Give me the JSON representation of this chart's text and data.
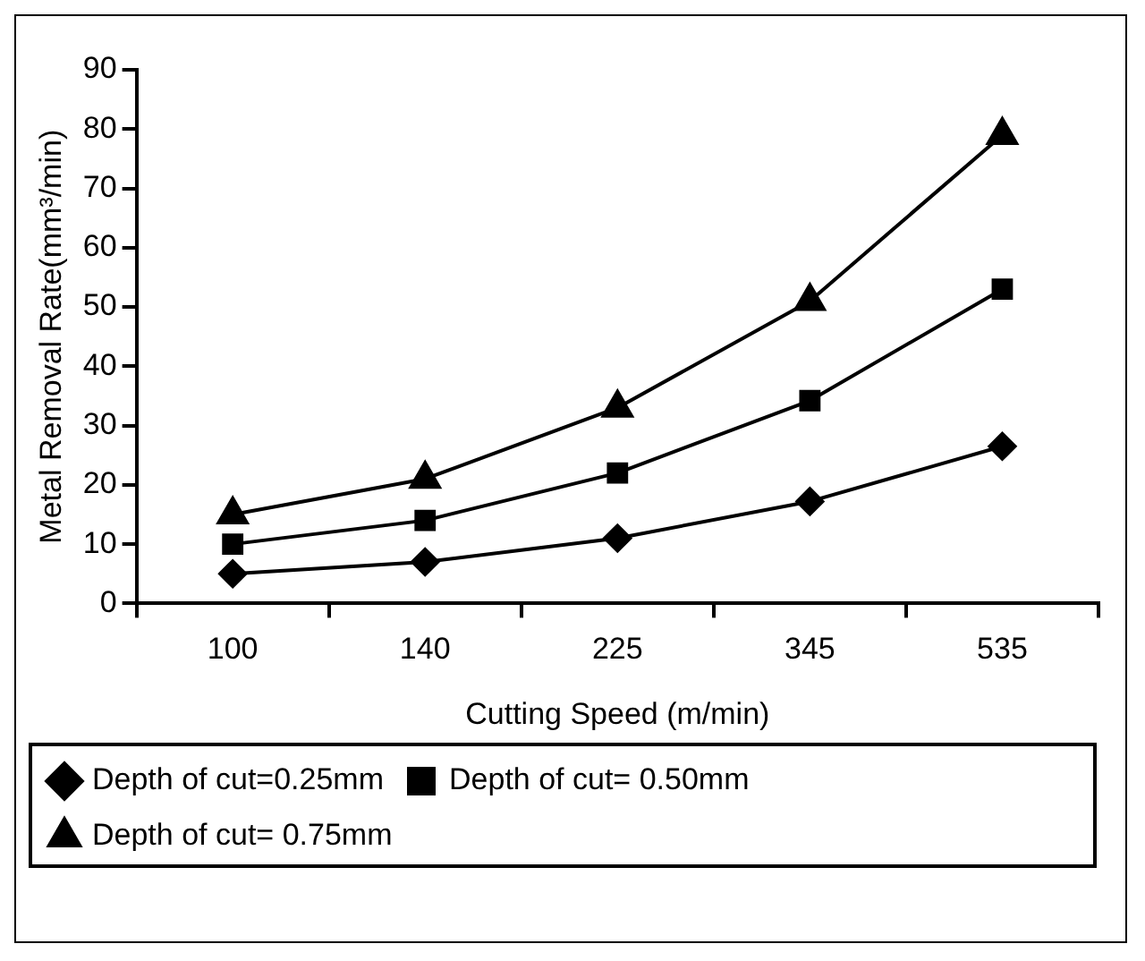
{
  "chart_data": {
    "type": "line",
    "xlabel": "Cutting Speed (m/min)",
    "ylabel": "Metal Removal Rate(mm³/min)",
    "categories": [
      "100",
      "140",
      "225",
      "345",
      "535"
    ],
    "series": [
      {
        "name": "Depth of cut=0.25mm",
        "color": "#000000",
        "marker": "diamond",
        "values": [
          5,
          7,
          11,
          17.2,
          26.5
        ]
      },
      {
        "name": "Depth of cut= 0.50mm",
        "color": "#000000",
        "marker": "square",
        "values": [
          10,
          14,
          22,
          34.2,
          53
        ]
      },
      {
        "name": "Depth of cut= 0.75mm",
        "color": "#000000",
        "marker": "triangle",
        "values": [
          15,
          21,
          33,
          51,
          79
        ]
      }
    ],
    "ylim": [
      0,
      90
    ],
    "yticks": [
      0,
      10,
      20,
      30,
      40,
      50,
      60,
      70,
      80,
      90
    ],
    "grid": false,
    "legend": "bottom",
    "line_style": "solid"
  }
}
